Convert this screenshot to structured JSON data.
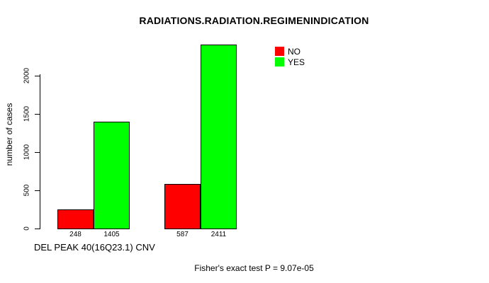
{
  "chart_data": {
    "type": "bar",
    "title": "RADIATIONS.RADIATION.REGIMENINDICATION",
    "ylabel": "number of cases",
    "xlabel": "DEL PEAK 40(16Q23.1) CNV",
    "annotation": "Fisher's exact test P = 9.07e-05",
    "grid": false,
    "yticks": [
      0,
      500,
      1000,
      1500,
      2000
    ],
    "ylim": [
      0,
      2470
    ],
    "legend_position": "top-right",
    "legend_items": [
      {
        "label": "NO",
        "color": "#ff0000"
      },
      {
        "label": "YES",
        "color": "#00ff00"
      }
    ],
    "series": [
      {
        "name": "NO",
        "color": "#ff0000",
        "values": [
          248,
          587
        ]
      },
      {
        "name": "YES",
        "color": "#00ff00",
        "values": [
          1405,
          2411
        ]
      }
    ],
    "groups": [
      {
        "bars": [
          {
            "series": "NO",
            "value": 248,
            "label": "248",
            "color": "#ff0000"
          },
          {
            "series": "YES",
            "value": 1405,
            "label": "1405",
            "color": "#00ff00"
          }
        ]
      },
      {
        "bars": [
          {
            "series": "NO",
            "value": 587,
            "label": "587",
            "color": "#ff0000"
          },
          {
            "series": "YES",
            "value": 2411,
            "label": "2411",
            "color": "#00ff00"
          }
        ]
      }
    ]
  }
}
